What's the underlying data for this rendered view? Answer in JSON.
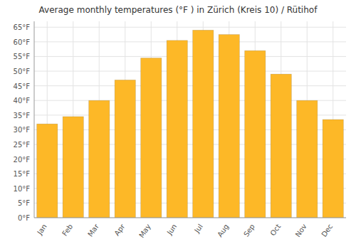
{
  "chart_data": {
    "type": "bar",
    "title": "Average monthly temperatures (°F ) in Zürich (Kreis 10) / Rütihof",
    "categories": [
      "Jan",
      "Feb",
      "Mar",
      "Apr",
      "May",
      "Jun",
      "Jul",
      "Aug",
      "Sep",
      "Oct",
      "Nov",
      "Dec"
    ],
    "values": [
      32,
      34.5,
      40,
      47,
      54.5,
      60.5,
      64,
      62.5,
      57,
      49,
      40,
      33.5
    ],
    "color": "#FDB827",
    "ylim": [
      0,
      67
    ],
    "yticks": [
      {
        "value": 0,
        "label": "0°F"
      },
      {
        "value": 5,
        "label": "5°F"
      },
      {
        "value": 10,
        "label": "10°F"
      },
      {
        "value": 15,
        "label": "15°F"
      },
      {
        "value": 20,
        "label": "20°F"
      },
      {
        "value": 25,
        "label": "25°F"
      },
      {
        "value": 30,
        "label": "30°F"
      },
      {
        "value": 35,
        "label": "35°F"
      },
      {
        "value": 40,
        "label": "40°F"
      },
      {
        "value": 45,
        "label": "45°F"
      },
      {
        "value": 50,
        "label": "50°F"
      },
      {
        "value": 55,
        "label": "55°F"
      },
      {
        "value": 60,
        "label": "60°F"
      },
      {
        "value": 65,
        "label": "65°F"
      }
    ],
    "grid": true
  }
}
